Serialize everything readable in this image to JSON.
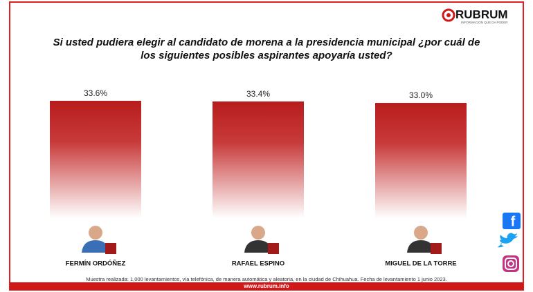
{
  "chart_data": {
    "type": "bar",
    "title": [
      "Si usted pudiera elegir al candidato de morena a la presidencia municipal ¿por cuál de",
      "los siguientes posibles aspirantes apoyaría usted?"
    ],
    "categories": [
      "FERMÍN ORDÓÑEZ",
      "RAFAEL ESPINO",
      "MIGUEL DE LA TORRE"
    ],
    "values": [
      33.6,
      33.4,
      33.0
    ],
    "value_labels": [
      "33.6%",
      "33.4%",
      "33.0%"
    ],
    "color": "#b81c1c",
    "brand": "RUBRUM",
    "tagline": "INFORMACIÓN QUE DA PODER",
    "note": "Muestra realizada: 1,000 levantamientos, vía telefónica, de manera automática y aleatoria, en la ciudad de Chihuahua. Fecha de levantamiento 1 junio 2023.",
    "website": "www.rubrum.info"
  }
}
